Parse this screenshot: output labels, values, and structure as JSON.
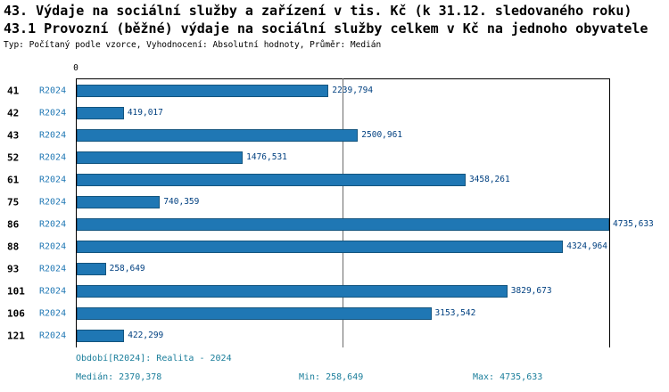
{
  "header": {
    "title_line1": "43. Výdaje na sociální služby a zařízení v tis. Kč (k 31.12. sledovaného roku)",
    "title_line2": "43.1 Provozní (běžné) výdaje na sociální služby celkem v Kč na jednoho obyvatele",
    "subtitle": "Typ: Počítaný podle vzorce, Vyhodnocení: Absolutní hodnoty, Průměr: Medián"
  },
  "chart_data": {
    "type": "bar",
    "orientation": "horizontal",
    "series_label": "R2024",
    "categories": [
      "41",
      "42",
      "43",
      "52",
      "61",
      "75",
      "86",
      "88",
      "93",
      "101",
      "106",
      "121"
    ],
    "values": [
      2239.794,
      419.017,
      2500.961,
      1476.531,
      3458.261,
      740.359,
      4735.633,
      4324.964,
      258.649,
      3829.673,
      3153.542,
      422.299
    ],
    "value_labels": [
      "2239,794",
      "419,017",
      "2500,961",
      "1476,531",
      "3458,261",
      "740,359",
      "4735,633",
      "4324,964",
      "258,649",
      "3829,673",
      "3153,542",
      "422,299"
    ],
    "xlim": [
      0,
      4735.633
    ],
    "axis_zero_label": "0",
    "median_line_value": 2370.378,
    "bar_color": "#1F77B4",
    "grid": false,
    "legend_position": "none"
  },
  "footer": {
    "period": "Období[R2024]: Realita - 2024",
    "median": "Medián: 2370,378",
    "min": "Min: 258,649",
    "max": "Max: 4735,633"
  }
}
